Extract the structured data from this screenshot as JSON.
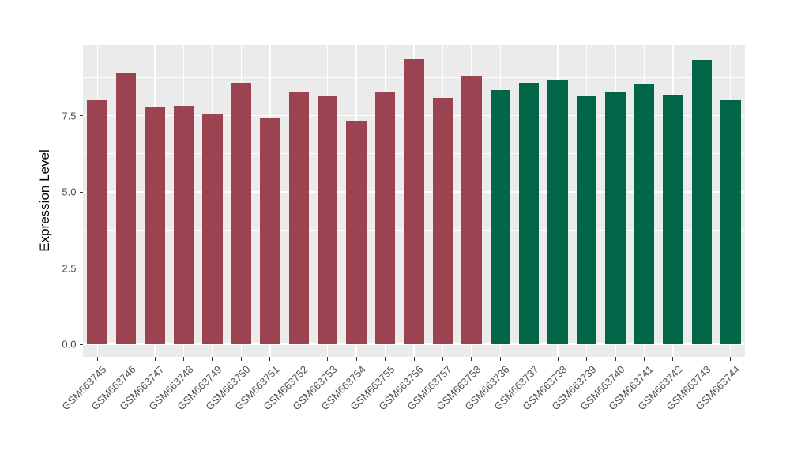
{
  "figure": {
    "background": "#FFFFFF",
    "panel_background": "#EBEBEB",
    "gridline_color": "#FFFFFF",
    "tick_color": "#333333",
    "axis_text_color": "#4D4D4D"
  },
  "y_axis": {
    "title": "Expression Level",
    "tick_labels": [
      "0.0",
      "2.5",
      "5.0",
      "7.5"
    ],
    "tick_values": [
      0,
      2.5,
      5.0,
      7.5
    ],
    "minor_tick_values": [
      1.25,
      3.75,
      6.25,
      8.75
    ]
  },
  "chart_data": {
    "type": "bar",
    "title": "",
    "xlabel": "",
    "ylabel": "Expression Level",
    "ylim": [
      0,
      9.82
    ],
    "grid": true,
    "legend": "none",
    "categories": [
      "GSM663745",
      "GSM663746",
      "GSM663747",
      "GSM663748",
      "GSM663749",
      "GSM663750",
      "GSM663751",
      "GSM663752",
      "GSM663753",
      "GSM663754",
      "GSM663755",
      "GSM663756",
      "GSM663757",
      "GSM663758",
      "GSM663736",
      "GSM663737",
      "GSM663738",
      "GSM663739",
      "GSM663740",
      "GSM663741",
      "GSM663742",
      "GSM663743",
      "GSM663744"
    ],
    "values": [
      8.0,
      8.89,
      7.78,
      7.83,
      7.55,
      8.58,
      7.44,
      8.29,
      8.14,
      7.34,
      8.3,
      9.35,
      8.08,
      8.82,
      8.35,
      8.58,
      8.68,
      8.13,
      8.26,
      8.56,
      8.19,
      9.33,
      8.01
    ],
    "groups": [
      "group1",
      "group1",
      "group1",
      "group1",
      "group1",
      "group1",
      "group1",
      "group1",
      "group1",
      "group1",
      "group1",
      "group1",
      "group1",
      "group1",
      "group2",
      "group2",
      "group2",
      "group2",
      "group2",
      "group2",
      "group2",
      "group2",
      "group2"
    ],
    "group_colors": {
      "group1": "#9C4351",
      "group2": "#016647"
    }
  }
}
